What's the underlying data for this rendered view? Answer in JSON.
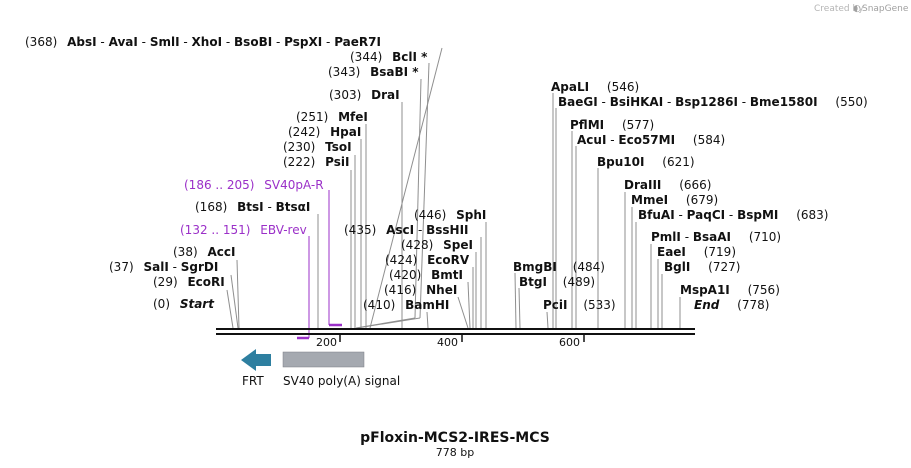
{
  "title": "pFloxin-MCS2-IRES-MCS",
  "length": "778 bp",
  "creator": {
    "text": "Created by",
    "brand": "SnapGene"
  },
  "colors": {
    "primer": "#9b30c8",
    "frt": "#2e7fa0",
    "polyA": "#a5a9b0",
    "backbone": "#111111"
  },
  "ruler": {
    "ticks": [
      "200",
      "400",
      "600"
    ]
  },
  "features": {
    "frt": "FRT",
    "polyA": "SV40 poly(A) signal"
  },
  "primers": [
    {
      "range": "(186 .. 205)",
      "name": "SV40pA-R"
    },
    {
      "range": "(132 .. 151)",
      "name": "EBV-rev"
    }
  ],
  "sites": [
    {
      "pos": "(368)",
      "names": [
        "AbsI",
        "AvaI",
        "SmlI",
        "XhoI",
        "BsoBI",
        "PspXI",
        "PaeR7I"
      ]
    },
    {
      "pos": "(344)",
      "names": [
        "BclI *"
      ]
    },
    {
      "pos": "(343)",
      "names": [
        "BsaBI *"
      ]
    },
    {
      "pos": "(303)",
      "names": [
        "DraI"
      ]
    },
    {
      "pos": "(251)",
      "names": [
        "MfeI"
      ]
    },
    {
      "pos": "(242)",
      "names": [
        "HpaI"
      ]
    },
    {
      "pos": "(230)",
      "names": [
        "TsoI"
      ]
    },
    {
      "pos": "(222)",
      "names": [
        "PsiI"
      ]
    },
    {
      "pos": "(168)",
      "names": [
        "BtsI",
        "BtsαI"
      ]
    },
    {
      "pos": "(38)",
      "names": [
        "AccI"
      ]
    },
    {
      "pos": "(37)",
      "names": [
        "SalI",
        "SgrDI"
      ]
    },
    {
      "pos": "(29)",
      "names": [
        "EcoRI"
      ]
    },
    {
      "pos": "(0)",
      "names": [
        "Start"
      ]
    },
    {
      "pos": "(446)",
      "names": [
        "SphI"
      ]
    },
    {
      "pos": "(435)",
      "names": [
        "AscI",
        "BssHII"
      ]
    },
    {
      "pos": "(428)",
      "names": [
        "SpeI"
      ]
    },
    {
      "pos": "(424)",
      "names": [
        "EcoRV"
      ]
    },
    {
      "pos": "(420)",
      "names": [
        "BmtI"
      ]
    },
    {
      "pos": "(416)",
      "names": [
        "NheI"
      ]
    },
    {
      "pos": "(410)",
      "names": [
        "BamHI"
      ]
    },
    {
      "pos": "(546)",
      "names": [
        "ApaLI"
      ]
    },
    {
      "pos": "(550)",
      "names": [
        "BaeGI",
        "BsiHKAI",
        "Bsp1286I",
        "Bme1580I"
      ]
    },
    {
      "pos": "(577)",
      "names": [
        "PflMI"
      ]
    },
    {
      "pos": "(584)",
      "names": [
        "AcuI",
        "Eco57MI"
      ]
    },
    {
      "pos": "(621)",
      "names": [
        "Bpu10I"
      ]
    },
    {
      "pos": "(484)",
      "names": [
        "BmgBI"
      ]
    },
    {
      "pos": "(489)",
      "names": [
        "BtgI"
      ]
    },
    {
      "pos": "(533)",
      "names": [
        "PciI"
      ]
    },
    {
      "pos": "(666)",
      "names": [
        "DraIII"
      ]
    },
    {
      "pos": "(679)",
      "names": [
        "MmeI"
      ]
    },
    {
      "pos": "(683)",
      "names": [
        "BfuAI",
        "PaqCI",
        "BspMI"
      ]
    },
    {
      "pos": "(710)",
      "names": [
        "PmlI",
        "BsaAI"
      ]
    },
    {
      "pos": "(719)",
      "names": [
        "EaeI"
      ]
    },
    {
      "pos": "(727)",
      "names": [
        "BglI"
      ]
    },
    {
      "pos": "(756)",
      "names": [
        "MspA1I"
      ]
    },
    {
      "pos": "(778)",
      "names": [
        "End"
      ]
    }
  ]
}
